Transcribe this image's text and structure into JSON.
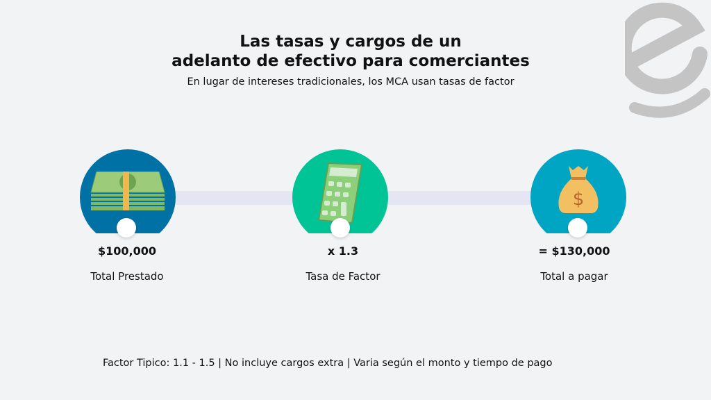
{
  "header": {
    "title_line1": "Las tasas y cargos de un",
    "title_line2": "adelanto de efectivo para comerciantes",
    "subtitle": "En lugar de intereses tradicionales, los MCA usan tasas de factor"
  },
  "logo": {
    "letter": "e",
    "color": "#c4c4c4"
  },
  "steps": [
    {
      "icon": "money-stack-icon",
      "color": "#0071a4",
      "value": "$100,000",
      "label": "Total Prestado"
    },
    {
      "icon": "calculator-icon",
      "color": "#00c496",
      "value": "x 1.3",
      "label": "Tasa de Factor"
    },
    {
      "icon": "money-bag-icon",
      "color": "#00a5c4",
      "value": "= $130,000",
      "label": "Total a pagar"
    }
  ],
  "footer": "Factor Tipico: 1.1 - 1.5 | No incluye cargos extra | Varia según el monto y tiempo de pago"
}
